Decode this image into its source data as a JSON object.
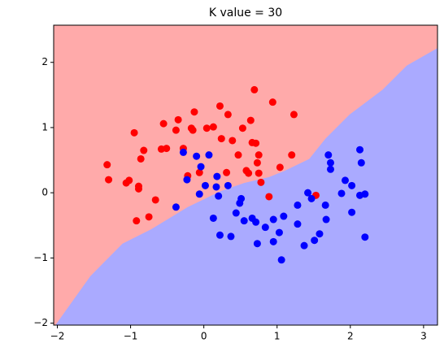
{
  "chart_data": {
    "type": "scatter",
    "title": "K value = 30",
    "xlim": [
      -2.05,
      3.19
    ],
    "ylim": [
      -2.03,
      2.57
    ],
    "xticks": [
      {
        "value": -2,
        "label": "−2"
      },
      {
        "value": -1,
        "label": "−1"
      },
      0,
      1,
      2,
      3
    ],
    "yticks": [
      {
        "value": -2,
        "label": "−2"
      },
      {
        "value": -1,
        "label": "−1"
      },
      0,
      1,
      2
    ],
    "boundary": {
      "color_above": "#ffaaaa",
      "color_below": "#aaaaff",
      "x": [
        -2.02,
        -1.55,
        -1.11,
        -0.72,
        -0.22,
        0.22,
        0.55,
        0.89,
        1.11,
        1.44,
        1.66,
        1.99,
        2.44,
        2.77,
        3.19
      ],
      "y": [
        -2.02,
        -1.28,
        -0.78,
        -0.56,
        -0.22,
        0.02,
        0.15,
        0.24,
        0.34,
        0.52,
        0.83,
        1.2,
        1.58,
        1.95,
        2.22
      ]
    },
    "series": [
      {
        "color": "#ff0000",
        "x": [
          -1.32,
          -1.3,
          -1.06,
          -1.02,
          -0.89,
          -0.89,
          -0.95,
          -0.82,
          -0.86,
          -0.66,
          -0.92,
          -0.75,
          -0.55,
          -0.58,
          -0.51,
          -0.35,
          -0.38,
          -0.28,
          -0.22,
          -0.13,
          -0.17,
          -0.15,
          -0.06,
          0.04,
          0.13,
          0.22,
          0.24,
          0.33,
          0.39,
          0.31,
          0.47,
          0.53,
          0.58,
          0.61,
          0.69,
          0.64,
          0.66,
          0.71,
          0.75,
          0.73,
          0.75,
          0.78,
          0.94,
          0.89,
          1.04,
          1.2,
          1.23,
          1.53
        ],
        "values": [
          0.43,
          0.2,
          0.15,
          0.19,
          0.06,
          0.1,
          0.92,
          0.65,
          0.52,
          -0.11,
          -0.43,
          -0.37,
          1.06,
          0.67,
          0.68,
          1.12,
          0.96,
          0.68,
          0.26,
          1.24,
          0.99,
          0.96,
          0.31,
          0.99,
          1.01,
          1.33,
          0.83,
          1.2,
          0.8,
          0.31,
          0.58,
          0.99,
          0.34,
          0.3,
          1.58,
          1.11,
          0.77,
          0.76,
          0.58,
          0.46,
          0.3,
          0.16,
          1.39,
          -0.06,
          0.39,
          0.58,
          1.2,
          -0.04
        ]
      },
      {
        "color": "#0000ff",
        "x": [
          -0.28,
          -0.1,
          0.07,
          -0.04,
          -0.23,
          -0.38,
          -0.06,
          0.02,
          0.18,
          0.17,
          0.2,
          0.13,
          0.22,
          0.37,
          0.33,
          0.49,
          0.44,
          0.51,
          0.55,
          0.66,
          0.71,
          0.73,
          0.84,
          0.95,
          0.95,
          1.03,
          1.06,
          1.09,
          1.28,
          1.28,
          1.42,
          1.47,
          1.37,
          1.51,
          1.58,
          1.66,
          1.67,
          1.7,
          1.73,
          1.73,
          1.88,
          1.93,
          2.02,
          2.02,
          2.13,
          2.15,
          2.13,
          2.2,
          2.2
        ],
        "values": [
          0.62,
          0.56,
          0.58,
          0.4,
          0.2,
          -0.22,
          -0.02,
          0.11,
          0.25,
          0.09,
          -0.05,
          -0.39,
          -0.65,
          -0.67,
          0.11,
          -0.16,
          -0.31,
          -0.09,
          -0.43,
          -0.39,
          -0.45,
          -0.78,
          -0.53,
          -0.41,
          -0.75,
          -0.61,
          -1.03,
          -0.36,
          -0.19,
          -0.48,
          0,
          -0.09,
          -0.81,
          -0.73,
          -0.63,
          -0.19,
          -0.41,
          0.58,
          0.46,
          0.36,
          -0.01,
          0.19,
          0.11,
          -0.3,
          0.66,
          0.46,
          -0.04,
          -0.02,
          -0.68
        ]
      }
    ]
  }
}
